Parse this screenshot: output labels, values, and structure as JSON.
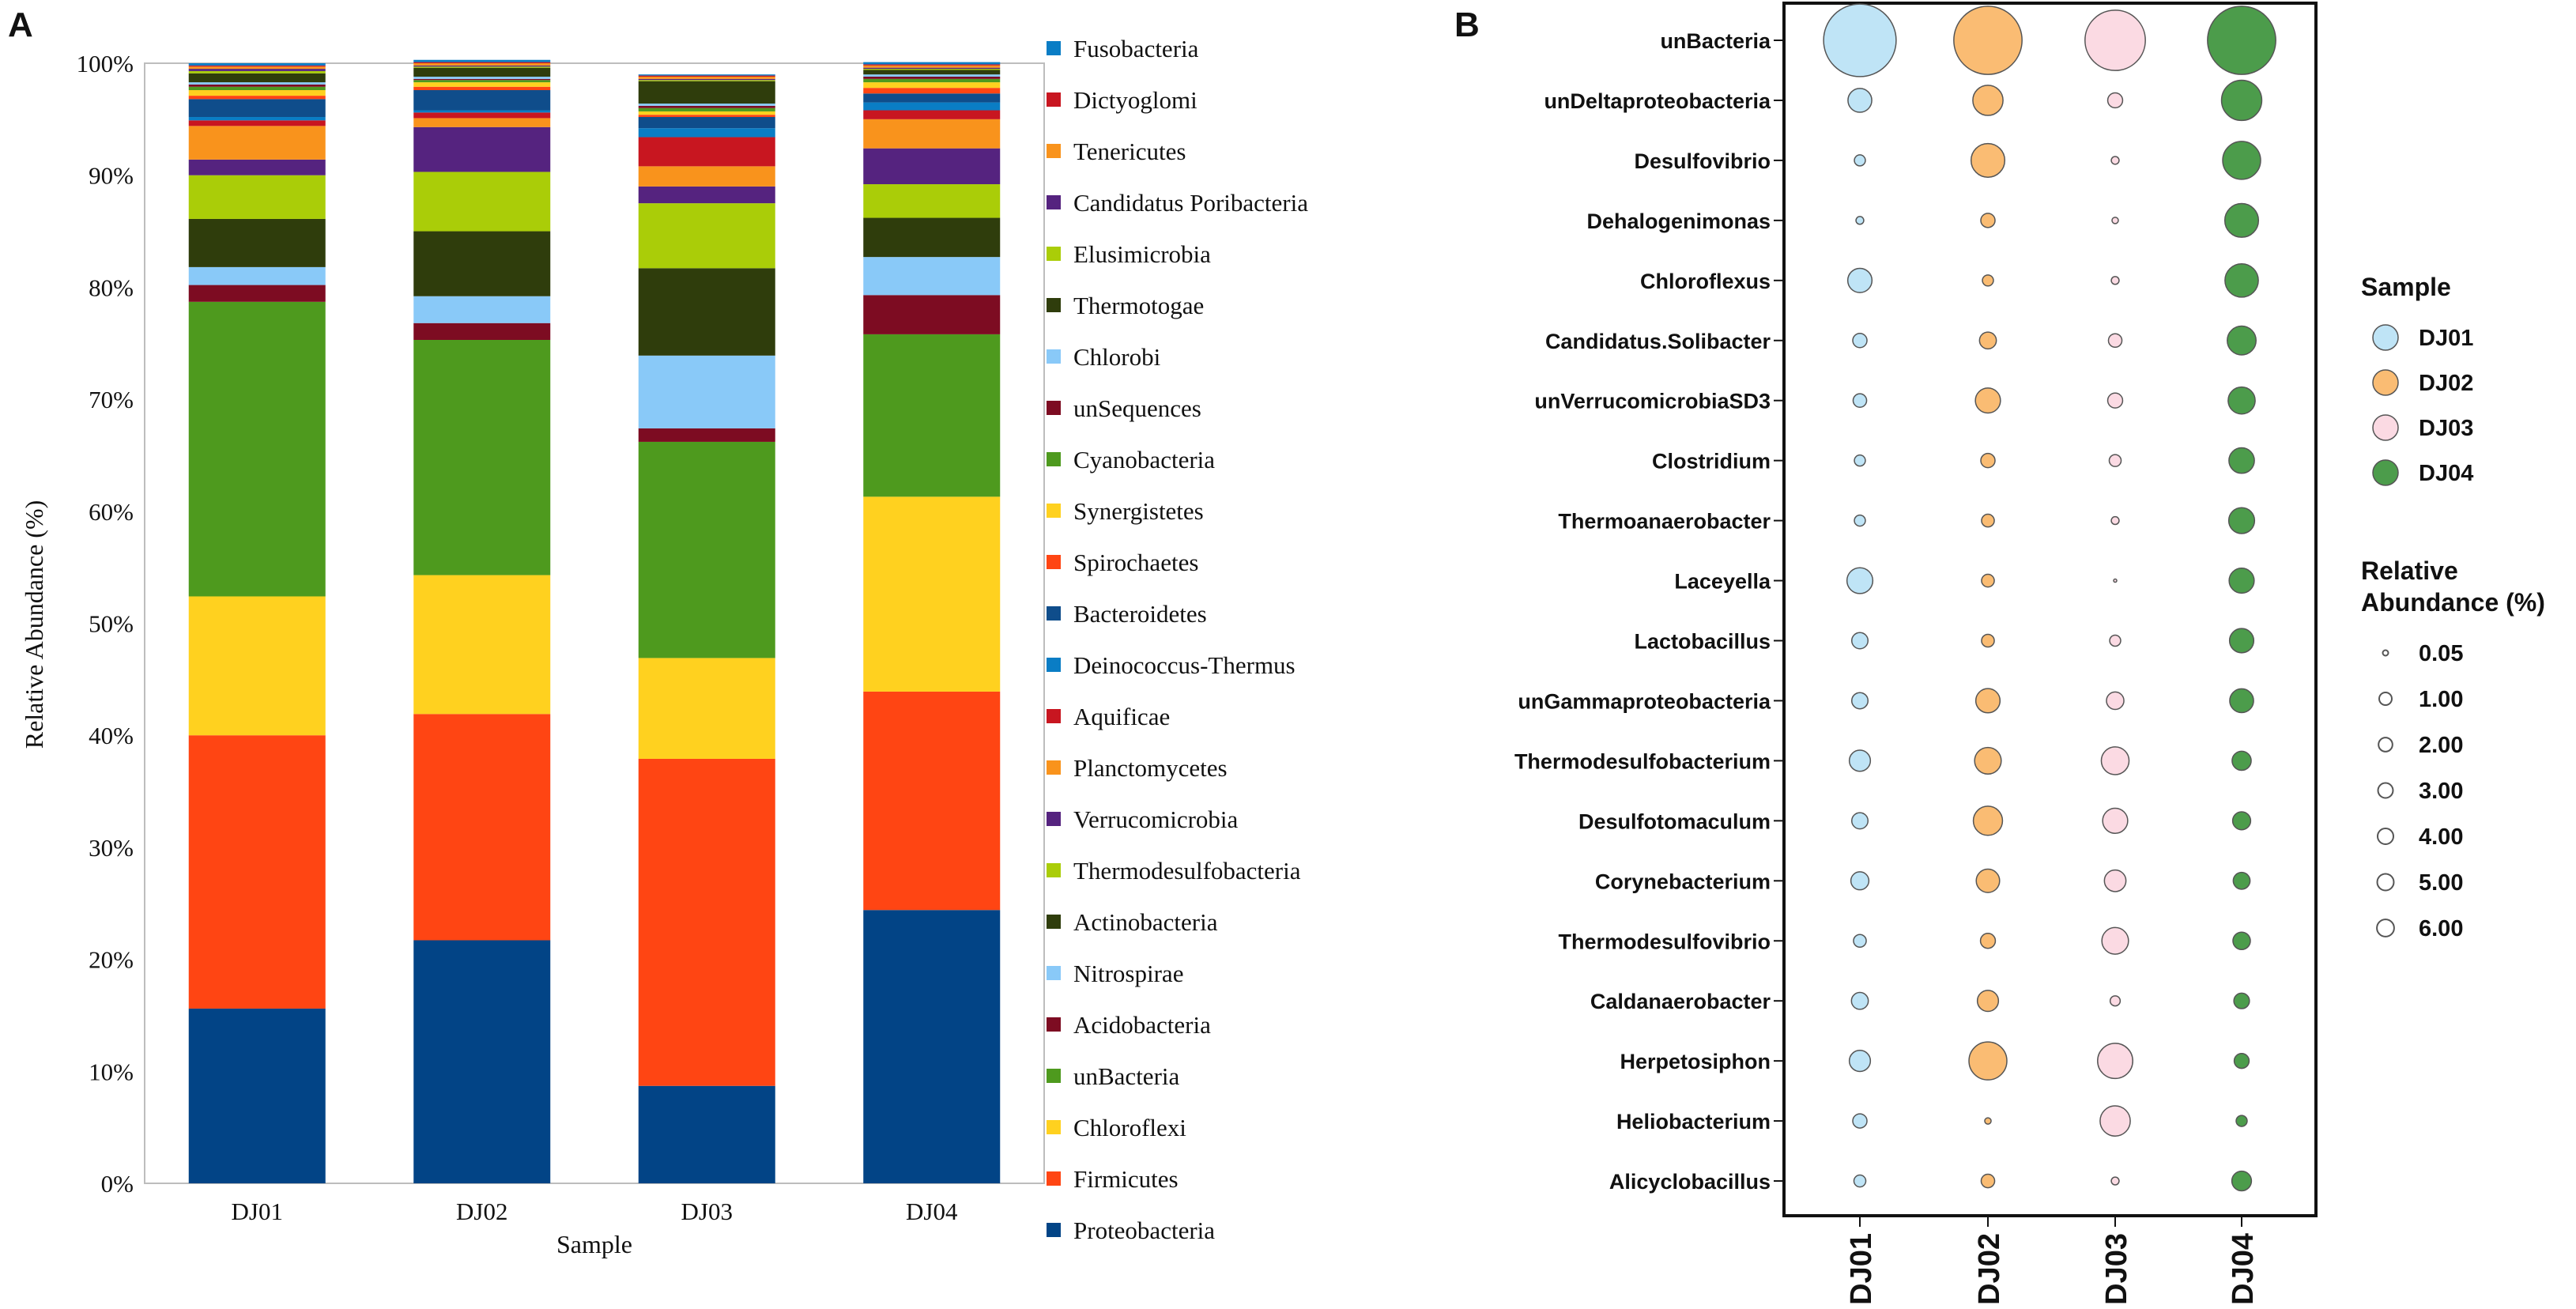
{
  "panels": {
    "a_label": "A",
    "b_label": "B"
  },
  "chart_data": [
    {
      "type": "bar",
      "stacked": true,
      "title": "",
      "xlabel": "Sample",
      "ylabel": "Relative Abundance (%)",
      "ylim": [
        0,
        100
      ],
      "yticks": [
        "0%",
        "10%",
        "20%",
        "30%",
        "40%",
        "50%",
        "60%",
        "70%",
        "80%",
        "90%",
        "100%"
      ],
      "categories": [
        "DJ01",
        "DJ02",
        "DJ03",
        "DJ04"
      ],
      "series": [
        {
          "name": "Proteobacteria",
          "color": "#024486",
          "values": [
            15.6,
            21.7,
            8.7,
            24.4
          ]
        },
        {
          "name": "Firmicutes",
          "color": "#FF4513",
          "values": [
            24.4,
            20.2,
            29.2,
            19.5
          ]
        },
        {
          "name": "Chloroflexi",
          "color": "#FFD11F",
          "values": [
            12.4,
            12.4,
            9.0,
            17.4
          ]
        },
        {
          "name": "unBacteria",
          "color": "#4E9A1E",
          "values": [
            26.3,
            21.0,
            19.3,
            14.5
          ]
        },
        {
          "name": "Acidobacteria",
          "color": "#7D0C22",
          "values": [
            1.5,
            1.5,
            1.2,
            3.5
          ]
        },
        {
          "name": "Nitrospirae",
          "color": "#89C9F8",
          "values": [
            1.6,
            2.4,
            6.5,
            3.4
          ]
        },
        {
          "name": "Actinobacteria",
          "color": "#2F3D0C",
          "values": [
            4.3,
            5.8,
            7.8,
            3.5
          ]
        },
        {
          "name": "Thermodesulfobacteria",
          "color": "#AACD08",
          "values": [
            3.9,
            5.3,
            5.8,
            3.0
          ]
        },
        {
          "name": "Verrucomicrobia",
          "color": "#55237F",
          "values": [
            1.4,
            4.0,
            1.5,
            3.2
          ]
        },
        {
          "name": "Planctomycetes",
          "color": "#F9931C",
          "values": [
            3.0,
            0.8,
            1.8,
            2.6
          ]
        },
        {
          "name": "Aquificae",
          "color": "#C81620",
          "values": [
            0.5,
            0.5,
            2.6,
            0.8
          ]
        },
        {
          "name": "Deinococcus-Thermus",
          "color": "#0A7DC5",
          "values": [
            0.3,
            0.2,
            0.8,
            0.7
          ]
        },
        {
          "name": "Bacteroidetes",
          "color": "#0F4D8B",
          "values": [
            1.6,
            1.8,
            1.0,
            0.8
          ]
        },
        {
          "name": "Spirochaetes",
          "color": "#FF4513",
          "values": [
            0.3,
            0.3,
            0.2,
            0.5
          ]
        },
        {
          "name": "Synergistetes",
          "color": "#FFD11F",
          "values": [
            0.5,
            0.4,
            0.3,
            0.5
          ]
        },
        {
          "name": "Cyanobacteria",
          "color": "#4E9A1E",
          "values": [
            0.3,
            0.2,
            0.3,
            0.3
          ]
        },
        {
          "name": "unSequences",
          "color": "#7D0C22",
          "values": [
            0.2,
            0.1,
            0.2,
            0.2
          ]
        },
        {
          "name": "Chlorobi",
          "color": "#89C9F8",
          "values": [
            0.2,
            0.2,
            0.2,
            0.2
          ]
        },
        {
          "name": "Thermotogae",
          "color": "#2F3D0C",
          "values": [
            0.8,
            0.8,
            2.0,
            0.4
          ]
        },
        {
          "name": "Elusimicrobia",
          "color": "#AACD08",
          "values": [
            0.2,
            0.1,
            0.1,
            0.1
          ]
        },
        {
          "name": "Candidatus Poribacteria",
          "color": "#55237F",
          "values": [
            0.2,
            0.1,
            0.1,
            0.1
          ]
        },
        {
          "name": "Tenericutes",
          "color": "#F9931C",
          "values": [
            0.2,
            0.2,
            0.2,
            0.2
          ]
        },
        {
          "name": "Dictyoglomi",
          "color": "#C81620",
          "values": [
            0.1,
            0.1,
            0.1,
            0.1
          ]
        },
        {
          "name": "Fusobacteria",
          "color": "#0A7DC5",
          "values": [
            0.2,
            0.2,
            0.1,
            0.2
          ]
        }
      ]
    },
    {
      "type": "scatter",
      "subtype": "bubble",
      "xlabel": "",
      "ylabel": "",
      "x_categories": [
        "DJ01",
        "DJ02",
        "DJ03",
        "DJ04"
      ],
      "y_categories": [
        "unBacteria",
        "unDeltaproteobacteria",
        "Desulfovibrio",
        "Dehalogenimonas",
        "Chloroflexus",
        "Candidatus.Solibacter",
        "unVerrucomicrobiaSD3",
        "Clostridium",
        "Thermoanaerobacter",
        "Laceyella",
        "Lactobacillus",
        "unGammaproteobacteria",
        "Thermodesulfobacterium",
        "Desulfotomaculum",
        "Corynebacterium",
        "Thermodesulfovibrio",
        "Caldanaerobacter",
        "Herpetosiphon",
        "Heliobacterium",
        "Alicyclobacillus"
      ],
      "series": [
        {
          "name": "DJ01",
          "color": "#B4DFF5",
          "values": [
            26.0,
            2.8,
            0.6,
            0.3,
            2.9,
            1.0,
            0.9,
            0.6,
            0.6,
            3.3,
            1.3,
            1.3,
            2.2,
            1.3,
            1.6,
            0.8,
            1.4,
            2.2,
            1.0,
            0.7
          ]
        },
        {
          "name": "DJ02",
          "color": "#F9B05A",
          "values": [
            23.0,
            4.5,
            5.6,
            1.0,
            0.6,
            1.4,
            3.1,
            1.0,
            0.8,
            0.8,
            0.8,
            2.9,
            3.5,
            4.2,
            2.7,
            1.1,
            2.2,
            7.1,
            0.2,
            0.9
          ]
        },
        {
          "name": "DJ03",
          "color": "#FAD4DE",
          "values": [
            18.0,
            1.1,
            0.3,
            0.2,
            0.3,
            0.9,
            1.1,
            0.7,
            0.3,
            0.05,
            0.6,
            1.5,
            3.8,
            3.1,
            2.3,
            3.5,
            0.5,
            6.1,
            4.5,
            0.3
          ]
        },
        {
          "name": "DJ04",
          "color": "#2D8B2B",
          "values": [
            23.0,
            8.0,
            7.1,
            5.6,
            5.5,
            4.1,
            3.6,
            3.2,
            3.3,
            3.1,
            2.9,
            2.8,
            1.8,
            1.6,
            1.4,
            1.5,
            1.2,
            1.1,
            0.6,
            1.9
          ]
        }
      ],
      "legend_sample_title": "Sample",
      "legend_sample_items": [
        "DJ01",
        "DJ02",
        "DJ03",
        "DJ04"
      ],
      "legend_size_title": [
        "Relative",
        "Abundance (%)"
      ],
      "legend_size_items": [
        "0.05",
        "1.00",
        "2.00",
        "3.00",
        "4.00",
        "5.00",
        "6.00"
      ],
      "legend_size_values": [
        0.05,
        1.0,
        2.0,
        3.0,
        4.0,
        5.0,
        6.0
      ]
    }
  ]
}
